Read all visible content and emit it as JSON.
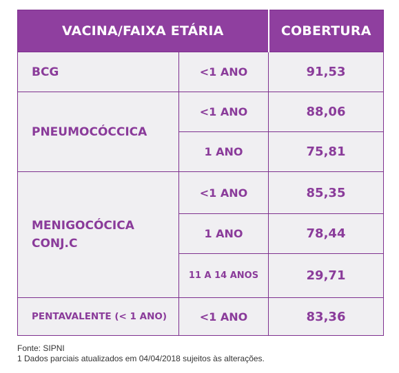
{
  "table": {
    "header": {
      "vaccine_age": "VACINA/FAIXA ETÁRIA",
      "coverage": "COBERTURA"
    },
    "rows": {
      "bcg": {
        "vaccine": "BCG",
        "age": "<1 ANO",
        "coverage": "91,53"
      },
      "pneumo": {
        "vaccine": "PNEUMOCÓCCICA",
        "ages": [
          {
            "age": "<1 ANO",
            "coverage": "88,06"
          },
          {
            "age": "1 ANO",
            "coverage": "75,81"
          }
        ]
      },
      "meningo": {
        "vaccine_line1": "MENIGOCÓCICA",
        "vaccine_line2": "CONJ.C",
        "ages": [
          {
            "age": "<1 ANO",
            "coverage": "85,35"
          },
          {
            "age": "1 ANO",
            "coverage": "78,44"
          },
          {
            "age": "11 A 14 ANOS",
            "coverage": "29,71"
          }
        ]
      },
      "penta": {
        "vaccine": "PENTAVALENTE (< 1 ANO)",
        "age": "<1 ANO",
        "coverage": "83,36"
      }
    }
  },
  "footer": {
    "source": "Fonte: SIPNI",
    "note": "1 Dados parciais atualizados em 04/04/2018 sujeitos às alterações."
  },
  "colors": {
    "header_bg": "#8f3f9f",
    "text_purple": "#8a3b9a",
    "cell_bg": "#f0eff2"
  }
}
